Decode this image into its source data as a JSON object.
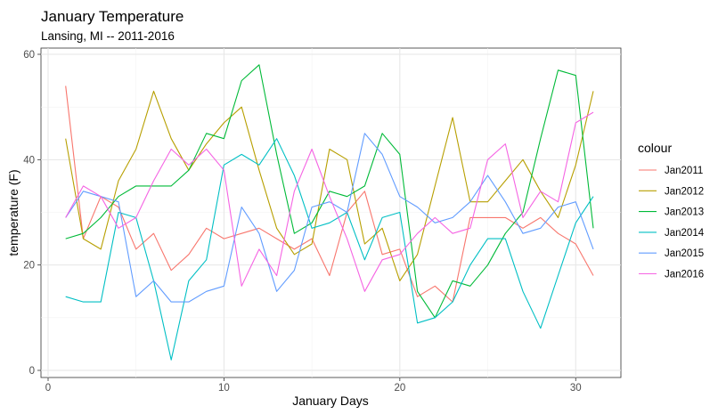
{
  "chart_data": {
    "type": "line",
    "title": "January Temperature",
    "subtitle": "Lansing, MI -- 2011-2016",
    "xlabel": "January Days",
    "ylabel": "temperature (F)",
    "xlim": [
      0,
      31
    ],
    "ylim": [
      0,
      60
    ],
    "x_ticks": [
      0,
      10,
      20,
      30
    ],
    "y_ticks": [
      0,
      20,
      40,
      60
    ],
    "grid": true,
    "legend_title": "colour",
    "legend_position": "right",
    "x": [
      1,
      2,
      3,
      4,
      5,
      6,
      7,
      8,
      9,
      10,
      11,
      12,
      13,
      14,
      15,
      16,
      17,
      18,
      19,
      20,
      21,
      22,
      23,
      24,
      25,
      26,
      27,
      28,
      29,
      30,
      31
    ],
    "series": [
      {
        "name": "Jan2011",
        "color": "#F8766D",
        "values": [
          54,
          25,
          33,
          31,
          23,
          26,
          19,
          22,
          27,
          25,
          26,
          27,
          25,
          23,
          25,
          18,
          30,
          34,
          22,
          23,
          14,
          16,
          13,
          29,
          29,
          29,
          27,
          29,
          26,
          24,
          18
        ]
      },
      {
        "name": "Jan2012",
        "color": "#B79F00",
        "values": [
          44,
          25,
          23,
          36,
          42,
          53,
          44,
          38,
          43,
          47,
          50,
          38,
          27,
          22,
          24,
          42,
          40,
          24,
          27,
          17,
          22,
          35,
          48,
          32,
          32,
          36,
          40,
          34,
          29,
          39,
          53
        ]
      },
      {
        "name": "Jan2013",
        "color": "#00BA38",
        "values": [
          25,
          26,
          29,
          33,
          35,
          35,
          35,
          38,
          45,
          44,
          55,
          58,
          41,
          26,
          28,
          34,
          33,
          35,
          45,
          41,
          15,
          10,
          17,
          16,
          20,
          26,
          30,
          44,
          57,
          56,
          27
        ]
      },
      {
        "name": "Jan2014",
        "color": "#00BFC4",
        "values": [
          14,
          13,
          13,
          30,
          29,
          17,
          2,
          17,
          21,
          39,
          41,
          39,
          44,
          37,
          27,
          28,
          30,
          21,
          29,
          30,
          9,
          10,
          13,
          20,
          25,
          25,
          15,
          8,
          18,
          28,
          33
        ]
      },
      {
        "name": "Jan2015",
        "color": "#619CFF",
        "values": [
          29,
          34,
          33,
          32,
          14,
          17,
          13,
          13,
          15,
          16,
          31,
          26,
          15,
          19,
          31,
          32,
          30,
          45,
          41,
          33,
          31,
          28,
          29,
          32,
          37,
          32,
          26,
          27,
          31,
          32,
          23
        ]
      },
      {
        "name": "Jan2016",
        "color": "#F564E3",
        "values": [
          29,
          35,
          33,
          27,
          29,
          36,
          42,
          39,
          42,
          38,
          16,
          23,
          18,
          34,
          42,
          33,
          25,
          15,
          21,
          22,
          26,
          29,
          26,
          27,
          40,
          43,
          29,
          34,
          32,
          47,
          49
        ]
      }
    ]
  }
}
